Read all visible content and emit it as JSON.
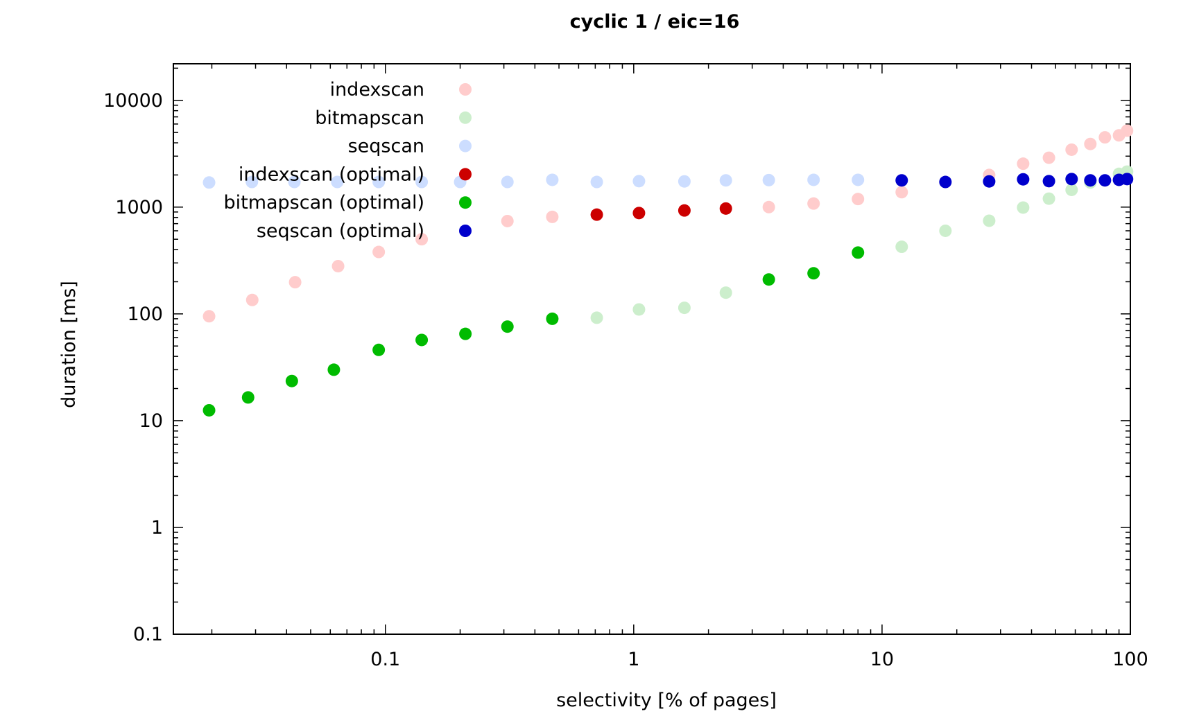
{
  "chart_data": {
    "type": "scatter",
    "title": "cyclic 1 / eic=16",
    "xlabel": "selectivity [% of pages]",
    "ylabel": "duration [ms]",
    "xscale": "log",
    "yscale": "log",
    "xlim": [
      0.014,
      100
    ],
    "ylim": [
      0.1,
      22000
    ],
    "xticks": [
      {
        "value": 0.1,
        "label": "0.1"
      },
      {
        "value": 1,
        "label": "1"
      },
      {
        "value": 10,
        "label": "10"
      },
      {
        "value": 100,
        "label": "100"
      }
    ],
    "yticks": [
      {
        "value": 0.1,
        "label": "0.1"
      },
      {
        "value": 1,
        "label": "1"
      },
      {
        "value": 10,
        "label": "10"
      },
      {
        "value": 100,
        "label": "100"
      },
      {
        "value": 1000,
        "label": "1000"
      },
      {
        "value": 10000,
        "label": "10000"
      }
    ],
    "grid": false,
    "legend_position": "top-left",
    "series": [
      {
        "name": "indexscan",
        "color": "#ffcccc",
        "points": [
          [
            0.0195,
            95
          ],
          [
            0.0291,
            135
          ],
          [
            0.0433,
            198
          ],
          [
            0.0645,
            280
          ],
          [
            0.094,
            380
          ],
          [
            0.14,
            500
          ],
          [
            0.31,
            740
          ],
          [
            0.47,
            810
          ],
          [
            3.5,
            1000
          ],
          [
            5.3,
            1080
          ],
          [
            8,
            1190
          ],
          [
            12,
            1380
          ],
          [
            27,
            2000
          ],
          [
            37,
            2550
          ],
          [
            47,
            2900
          ],
          [
            58,
            3450
          ],
          [
            69,
            3900
          ],
          [
            79,
            4500
          ],
          [
            90,
            4700
          ],
          [
            97,
            5200
          ]
        ]
      },
      {
        "name": "bitmapscan",
        "color": "#cceecc",
        "points": [
          [
            0.71,
            92
          ],
          [
            1.05,
            110
          ],
          [
            1.6,
            114
          ],
          [
            2.35,
            158
          ],
          [
            12,
            425
          ],
          [
            18,
            600
          ],
          [
            27,
            745
          ],
          [
            37,
            990
          ],
          [
            47,
            1200
          ],
          [
            58,
            1450
          ],
          [
            69,
            1700
          ],
          [
            90,
            2050
          ],
          [
            97,
            2150
          ]
        ]
      },
      {
        "name": "seqscan",
        "color": "#ccddff",
        "points": [
          [
            0.0195,
            1700
          ],
          [
            0.029,
            1720
          ],
          [
            0.043,
            1720
          ],
          [
            0.064,
            1720
          ],
          [
            0.094,
            1720
          ],
          [
            0.14,
            1720
          ],
          [
            0.2,
            1720
          ],
          [
            0.31,
            1720
          ],
          [
            0.47,
            1800
          ],
          [
            0.71,
            1720
          ],
          [
            1.05,
            1750
          ],
          [
            1.6,
            1740
          ],
          [
            2.35,
            1780
          ],
          [
            3.5,
            1790
          ],
          [
            5.3,
            1800
          ],
          [
            8,
            1800
          ]
        ]
      },
      {
        "name": "indexscan (optimal)",
        "color": "#cc0000",
        "points": [
          [
            0.71,
            850
          ],
          [
            1.05,
            880
          ],
          [
            1.6,
            930
          ],
          [
            2.35,
            970
          ]
        ]
      },
      {
        "name": "bitmapscan (optimal)",
        "color": "#00bb00",
        "points": [
          [
            0.0195,
            12.5
          ],
          [
            0.028,
            16.5
          ],
          [
            0.042,
            23.5
          ],
          [
            0.062,
            30
          ],
          [
            0.094,
            46
          ],
          [
            0.14,
            57
          ],
          [
            0.21,
            65
          ],
          [
            0.31,
            76
          ],
          [
            0.47,
            90
          ],
          [
            3.5,
            210
          ],
          [
            5.3,
            240
          ],
          [
            8,
            375
          ]
        ]
      },
      {
        "name": "seqscan (optimal)",
        "color": "#0000cc",
        "points": [
          [
            12,
            1780
          ],
          [
            18,
            1720
          ],
          [
            27,
            1740
          ],
          [
            37,
            1820
          ],
          [
            47,
            1750
          ],
          [
            58,
            1830
          ],
          [
            69,
            1780
          ],
          [
            79,
            1780
          ],
          [
            90,
            1800
          ],
          [
            97,
            1830
          ]
        ]
      }
    ]
  }
}
